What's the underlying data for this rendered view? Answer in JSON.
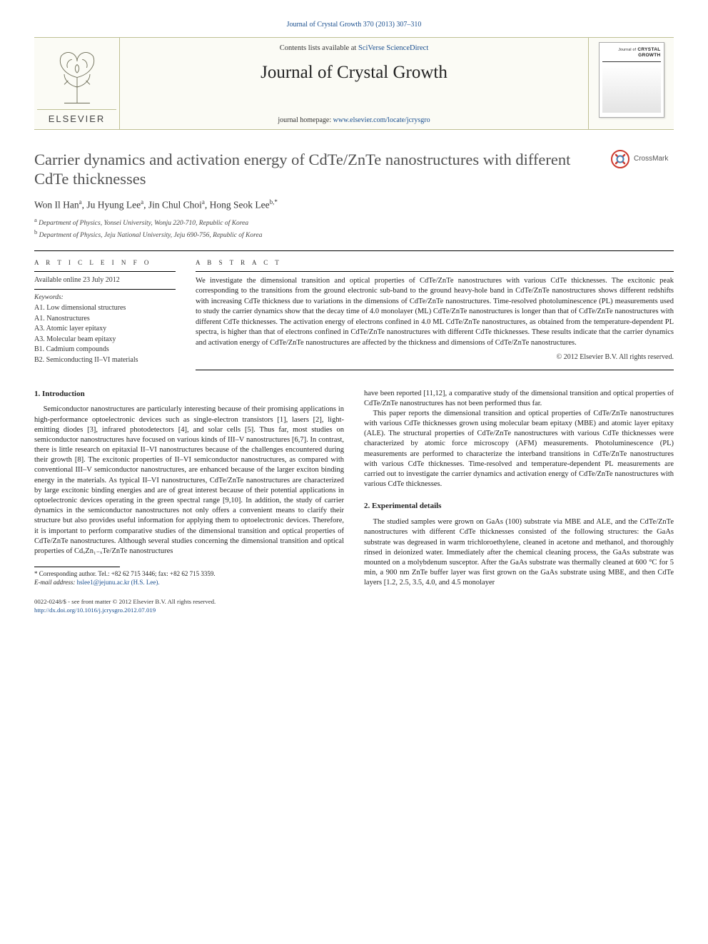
{
  "top_link": {
    "journal": "Journal of Crystal Growth",
    "vol": "370 (2013) 307–310",
    "url_text": "Journal of Crystal Growth 370 (2013) 307–310"
  },
  "masthead": {
    "contents_prefix": "Contents lists available at ",
    "contents_link": "SciVerse ScienceDirect",
    "journal_name": "Journal of Crystal Growth",
    "homepage_prefix": "journal homepage: ",
    "homepage_link": "www.elsevier.com/locate/jcrysgro",
    "publisher": "ELSEVIER",
    "cover_label": "CRYSTAL\nGROWTH"
  },
  "colors": {
    "link": "#1a4f8f",
    "mast_border": "#bfc094",
    "mast_bg": "#fbfbf5",
    "title_gray": "#515151",
    "text": "#222222"
  },
  "article": {
    "title": "Carrier dynamics and activation energy of CdTe/ZnTe nanostructures with different CdTe thicknesses",
    "crossmark": "CrossMark",
    "authors_html": "Won Il Han<sup>a</sup>, Ju Hyung Lee<sup>a</sup>, Jin Chul Choi<sup>a</sup>, Hong Seok Lee<sup>b,*</sup>",
    "affiliations": [
      {
        "sup": "a",
        "text": "Department of Physics, Yonsei University, Wonju 220-710, Republic of Korea"
      },
      {
        "sup": "b",
        "text": "Department of Physics, Jeju National University, Jeju 690-756, Republic of Korea"
      }
    ]
  },
  "info": {
    "label": "A R T I C L E  I N F O",
    "available": "Available online 23 July 2012",
    "kw_head": "Keywords:",
    "keywords": [
      "A1. Low dimensional structures",
      "A1. Nanostructures",
      "A3. Atomic layer epitaxy",
      "A3. Molecular beam epitaxy",
      "B1. Cadmium compounds",
      "B2. Semiconducting II–VI materials"
    ]
  },
  "abstract": {
    "label": "A B S T R A C T",
    "text": "We investigate the dimensional transition and optical properties of CdTe/ZnTe nanostructures with various CdTe thicknesses. The excitonic peak corresponding to the transitions from the ground electronic sub-band to the ground heavy-hole band in CdTe/ZnTe nanostructures shows different redshifts with increasing CdTe thickness due to variations in the dimensions of CdTe/ZnTe nanostructures. Time-resolved photoluminescence (PL) measurements used to study the carrier dynamics show that the decay time of 4.0 monolayer (ML) CdTe/ZnTe nanostructures is longer than that of CdTe/ZnTe nanostructures with different CdTe thicknesses. The activation energy of electrons confined in 4.0 ML CdTe/ZnTe nanostructures, as obtained from the temperature-dependent PL spectra, is higher than that of electrons confined in CdTe/ZnTe nanostructures with different CdTe thicknesses. These results indicate that the carrier dynamics and activation energy of CdTe/ZnTe nanostructures are affected by the thickness and dimensions of CdTe/ZnTe nanostructures.",
    "copyright": "© 2012 Elsevier B.V. All rights reserved."
  },
  "sections": {
    "s1_head": "1.  Introduction",
    "s1_p1": "Semiconductor nanostructures are particularly interesting because of their promising applications in high-performance optoelectronic devices such as single-electron transistors [1], lasers [2], light-emitting diodes [3], infrared photodetectors [4], and solar cells [5]. Thus far, most studies on semiconductor nanostructures have focused on various kinds of III–V nanostructures [6,7]. In contrast, there is little research on epitaxial II–VI nanostructures because of the challenges encountered during their growth [8]. The excitonic properties of II–VI semiconductor nanostructures, as compared with conventional III–V semiconductor nanostructures, are enhanced because of the larger exciton binding energy in the materials. As typical II–VI nanostructures, CdTe/ZnTe nanostructures are characterized by large excitonic binding energies and are of great interest because of their potential applications in optoelectronic devices operating in the green spectral range [9,10]. In addition, the study of carrier dynamics in the semiconductor nanostructures not only offers a convenient means to clarify their structure but also provides useful information for applying them to optoelectronic devices. Therefore, it is important to perform comparative studies of the dimensional transition and optical properties of CdTe/ZnTe nanostructures. Although several studies concerning the dimensional transition and optical properties of CdₓZn₁₋ₓTe/ZnTe nanostructures",
    "s1_p1b": "have been reported [11,12], a comparative study of the dimensional transition and optical properties of CdTe/ZnTe nanostructures has not been performed thus far.",
    "s1_p2": "This paper reports the dimensional transition and optical properties of CdTe/ZnTe nanostructures with various CdTe thicknesses grown using molecular beam epitaxy (MBE) and atomic layer epitaxy (ALE). The structural properties of CdTe/ZnTe nanostructures with various CdTe thicknesses were characterized by atomic force microscopy (AFM) measurements. Photoluminescence (PL) measurements are performed to characterize the interband transitions in CdTe/ZnTe nanostructures with various CdTe thicknesses. Time-resolved and temperature-dependent PL measurements are carried out to investigate the carrier dynamics and activation energy of CdTe/ZnTe nanostructures with various CdTe thicknesses.",
    "s2_head": "2.  Experimental details",
    "s2_p1": "The studied samples were grown on GaAs (100) substrate via MBE and ALE, and the CdTe/ZnTe nanostructures with different CdTe thicknesses consisted of the following structures: the GaAs substrate was degreased in warm trichloroethylene, cleaned in acetone and methanol, and thoroughly rinsed in deionized water. Immediately after the chemical cleaning process, the GaAs substrate was mounted on a molybdenum susceptor. After the GaAs substrate was thermally cleaned at 600 °C for 5 min, a 900 nm ZnTe buffer layer was first grown on the GaAs substrate using MBE, and then CdTe layers [1.2, 2.5, 3.5, 4.0, and 4.5 monolayer"
  },
  "footnote": {
    "corr": "* Corresponding author. Tel.: +82 62 715 3446; fax: +82 62 715 3359.",
    "email_label": "E-mail address:",
    "email": "hslee1@jejunu.ac.kr (H.S. Lee)."
  },
  "footer": {
    "line1": "0022-0248/$ - see front matter © 2012 Elsevier B.V. All rights reserved.",
    "line2": "http://dx.doi.org/10.1016/j.jcrysgro.2012.07.019"
  }
}
